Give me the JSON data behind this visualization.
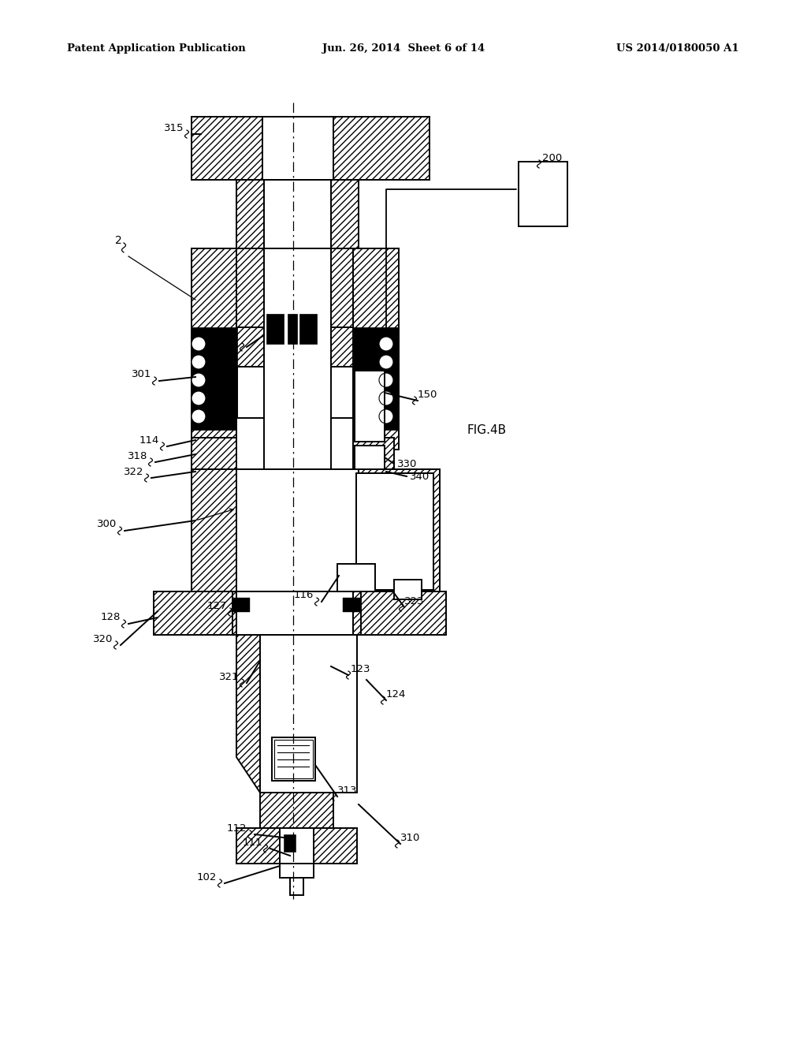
{
  "title_left": "Patent Application Publication",
  "title_center": "Jun. 26, 2014  Sheet 6 of 14",
  "title_right": "US 2014/0180050 A1",
  "fig_label": "FIG.4B",
  "bg": "#ffffff"
}
